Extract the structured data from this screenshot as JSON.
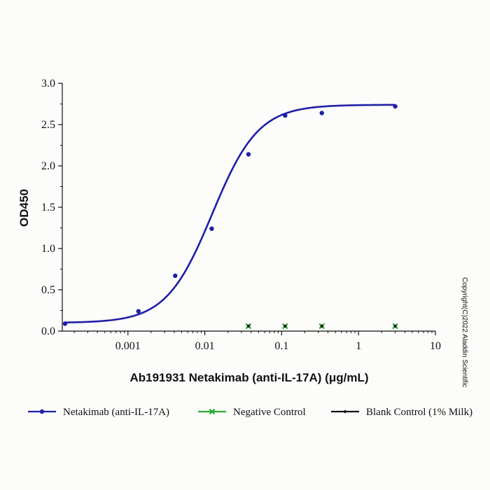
{
  "chart_data": {
    "type": "scatter",
    "xlabel": "Ab191931 Netakimab (anti-IL-17A) (μg/mL)",
    "ylabel": "OD450",
    "x_scale": "log",
    "xlim": [
      0.00014,
      10
    ],
    "ylim": [
      0,
      3.0
    ],
    "x_ticks": [
      {
        "value": 0.001,
        "label": "0.001"
      },
      {
        "value": 0.01,
        "label": "0.01"
      },
      {
        "value": 0.1,
        "label": "0.1"
      },
      {
        "value": 1,
        "label": "1"
      },
      {
        "value": 10,
        "label": "10"
      }
    ],
    "y_ticks": [
      {
        "value": 0,
        "label": "0.0"
      },
      {
        "value": 0.5,
        "label": "0.5"
      },
      {
        "value": 1.0,
        "label": "1.0"
      },
      {
        "value": 1.5,
        "label": "1.5"
      },
      {
        "value": 2.0,
        "label": "2.0"
      },
      {
        "value": 2.5,
        "label": "2.5"
      },
      {
        "value": 3.0,
        "label": "3.0"
      }
    ],
    "grid": false,
    "legend_position": "bottom",
    "series": [
      {
        "name": "Netakimab (anti-IL-17A)",
        "color": "#1f1fa8",
        "marker": "circle",
        "fit": "4PL sigmoid",
        "x": [
          0.000152,
          0.00137,
          0.00412,
          0.0123,
          0.037,
          0.111,
          0.333,
          3.0
        ],
        "y": [
          0.09,
          0.24,
          0.67,
          1.24,
          2.14,
          2.61,
          2.64,
          2.72
        ]
      },
      {
        "name": "Negative Control",
        "color": "#2eaa2e",
        "marker": "x",
        "x": [
          0.037,
          0.111,
          0.333,
          3.0
        ],
        "y": [
          0.06,
          0.06,
          0.06,
          0.06
        ]
      },
      {
        "name": "Blank Control (1% Milk)",
        "color": "#111111",
        "marker": "diamond",
        "x": [
          0.037,
          0.111,
          0.333,
          3.0
        ],
        "y": [
          0.06,
          0.06,
          0.06,
          0.06
        ]
      }
    ],
    "annotation": "Copyright(C)2022 Aladdin Scientific"
  }
}
